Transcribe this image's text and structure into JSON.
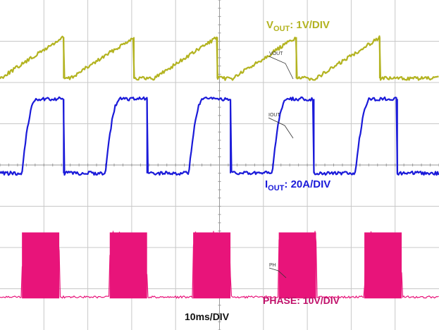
{
  "chart_data": {
    "type": "line",
    "title": "",
    "timebase": "10ms/DIV",
    "grid": true,
    "divisions": {
      "x": 10,
      "y": 8
    },
    "series": [
      {
        "name": "VOUT",
        "label_main": "V",
        "label_sub": "OUT",
        "label_rest": ": 1V/DIV",
        "trace_tag": "VOUT",
        "color": "#b3b320",
        "shape": "sawtooth",
        "pulse_starts_div": [
          0.0,
          1.6,
          3.5,
          5.3,
          7.2
        ],
        "pulse_width_div": 1.45,
        "low_div": 6.1,
        "high_div": 7.1
      },
      {
        "name": "IOUT",
        "label_main": "I",
        "label_sub": "OUT",
        "label_rest": ": 20A/DIV",
        "trace_tag": "IOUT",
        "color": "#1a1ad9",
        "shape": "step",
        "pulse_starts_div": [
          0.5,
          2.4,
          4.3,
          6.2,
          8.1
        ],
        "pulse_width_div": 0.95,
        "low_div": 3.8,
        "high_div": 5.6
      },
      {
        "name": "PHASE",
        "label_main": "PHASE: 10V/DIV",
        "label_sub": "",
        "label_rest": "",
        "trace_tag": "PH",
        "color": "#e8147a",
        "shape": "square",
        "pulse_starts_div": [
          0.5,
          2.5,
          4.4,
          6.35,
          8.3
        ],
        "pulse_width_div": 0.85,
        "low_div": 0.8,
        "high_div": 2.4
      }
    ]
  }
}
